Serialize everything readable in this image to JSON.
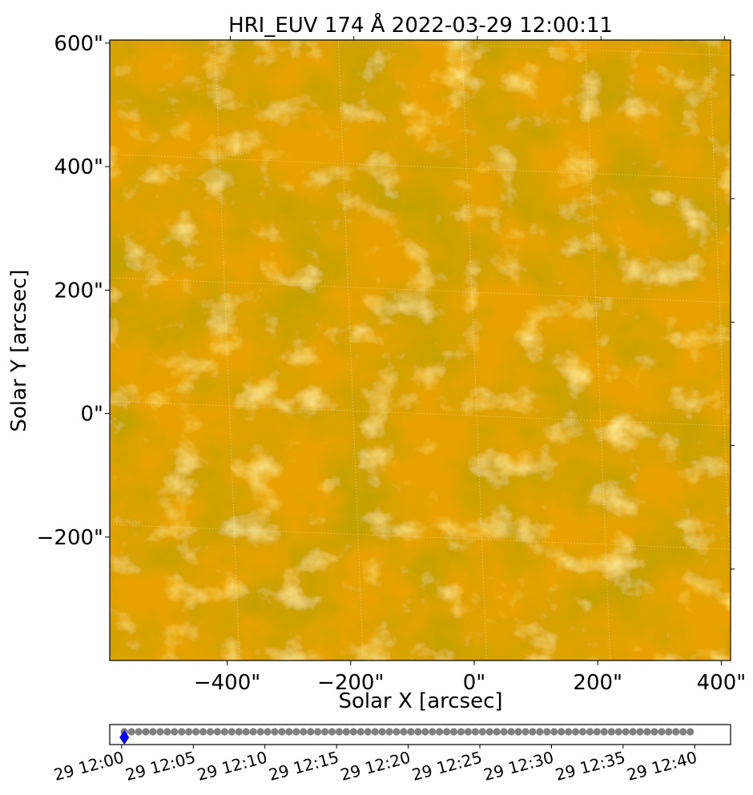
{
  "chart_data": [
    {
      "type": "heatmap",
      "title": "HRI_EUV 174 Å 2022-03-29 12:00:11",
      "xlabel": "Solar X [arcsec]",
      "ylabel": "Solar Y [arcsec]",
      "xlim": [
        -590,
        415
      ],
      "ylim": [
        -400,
        605
      ],
      "x_ticks": [
        {
          "value": -400,
          "label": "−400\""
        },
        {
          "value": -200,
          "label": "−200\""
        },
        {
          "value": 0,
          "label": "0\""
        },
        {
          "value": 200,
          "label": "200\""
        },
        {
          "value": 400,
          "label": "400\""
        }
      ],
      "y_ticks": [
        {
          "value": -200,
          "label": "−200\""
        },
        {
          "value": 0,
          "label": "0\""
        },
        {
          "value": 200,
          "label": "200\""
        },
        {
          "value": 400,
          "label": "400\""
        },
        {
          "value": 600,
          "label": "600\""
        }
      ],
      "grid": true,
      "colormap": [
        "#8a5a00",
        "#c98a00",
        "#ffb300",
        "#ffd04d"
      ],
      "base_color": "#e8a200"
    },
    {
      "type": "scatter",
      "xlim": [
        "2022-03-29 11:59:10",
        "2022-03-29 12:42:30"
      ],
      "x_ticks": [
        {
          "value": "2022-03-29 12:00",
          "label": "29 12:00"
        },
        {
          "value": "2022-03-29 12:05",
          "label": "29 12:05"
        },
        {
          "value": "2022-03-29 12:10",
          "label": "29 12:10"
        },
        {
          "value": "2022-03-29 12:15",
          "label": "29 12:15"
        },
        {
          "value": "2022-03-29 12:20",
          "label": "29 12:20"
        },
        {
          "value": "2022-03-29 12:25",
          "label": "29 12:25"
        },
        {
          "value": "2022-03-29 12:30",
          "label": "29 12:30"
        },
        {
          "value": "2022-03-29 12:35",
          "label": "29 12:35"
        },
        {
          "value": "2022-03-29 12:40",
          "label": "29 12:40"
        }
      ],
      "series": [
        {
          "marker": "circle",
          "color": "#808080",
          "start": "2022-03-29 12:00:11",
          "end": "2022-03-29 12:39:41",
          "count": 80
        },
        {
          "marker": "diamond",
          "color": "#0000ff",
          "x": [
            "2022-03-29 12:00:11"
          ]
        }
      ]
    }
  ]
}
